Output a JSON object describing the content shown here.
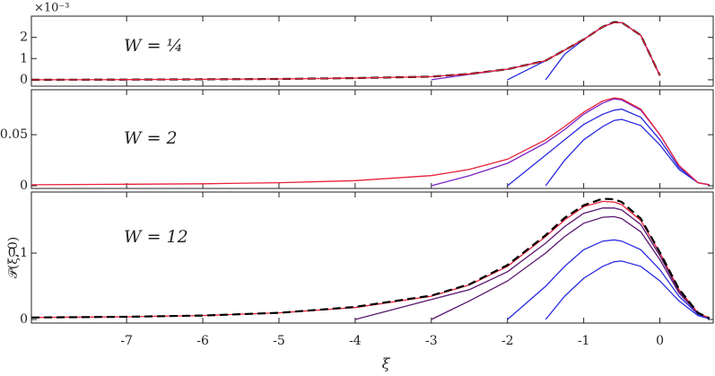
{
  "chart_data": [
    {
      "type": "line",
      "annotation": "W = ¼",
      "y_multiplier": "×10⁻³",
      "x": [
        -8.25,
        -7,
        -6,
        -5,
        -4,
        -3,
        -2.5,
        -2,
        -1.5,
        -1.25,
        -1,
        -0.75,
        -0.6,
        -0.5,
        -0.25,
        0,
        0.25,
        0.5,
        0.65
      ],
      "xlim": [
        -8.25,
        0.7
      ],
      "xticks": [
        -7,
        -6,
        -5,
        -4,
        -3,
        -2,
        -1,
        0
      ],
      "ylim": [
        -0.0003,
        0.003
      ],
      "yticks": [
        0,
        {
          "value": 0.001,
          "label": "1"
        },
        {
          "value": 0.002,
          "label": "2"
        }
      ],
      "series": [
        {
          "color": "#2a2ae0",
          "values": [
            null,
            null,
            null,
            null,
            null,
            null,
            null,
            null,
            0,
            0.0012,
            0.0019,
            0.0025,
            0.0027,
            0.0027,
            0.0021,
            0.0002,
            null,
            null,
            null
          ]
        },
        {
          "color": "#2a2ae0",
          "values": [
            null,
            null,
            null,
            null,
            null,
            null,
            null,
            0,
            0.0009,
            0.0014,
            0.0019,
            0.0025,
            0.0027,
            0.0027,
            0.0021,
            0.0002,
            null,
            null,
            null
          ]
        },
        {
          "color": "#7a22c8",
          "values": [
            null,
            null,
            null,
            null,
            null,
            0,
            0.00026,
            0.0005,
            0.0009,
            0.0014,
            0.0019,
            0.0025,
            0.0027,
            0.0027,
            0.0021,
            0.0002,
            null,
            null,
            null
          ]
        },
        {
          "color": "#000000",
          "dash": true,
          "values": [
            0,
            1e-05,
            2e-05,
            4e-05,
            8e-05,
            0.00015,
            0.00028,
            0.0005,
            0.0009,
            0.0014,
            0.0019,
            0.0025,
            0.00272,
            0.0027,
            0.0021,
            0.0002,
            null,
            null,
            null
          ]
        },
        {
          "color": "#e8213b",
          "values": [
            0,
            1e-05,
            2e-05,
            4e-05,
            8e-05,
            0.00015,
            0.00028,
            0.0005,
            0.0009,
            0.0014,
            0.0019,
            0.0025,
            0.0027,
            0.0027,
            0.0021,
            0.0002,
            null,
            null,
            null
          ]
        }
      ]
    },
    {
      "type": "line",
      "annotation": "W = 2",
      "x": [
        -8.25,
        -7,
        -6,
        -5,
        -4,
        -3,
        -2.5,
        -2,
        -1.5,
        -1.25,
        -1,
        -0.75,
        -0.6,
        -0.5,
        -0.25,
        0,
        0.25,
        0.5,
        0.65
      ],
      "xlim": [
        -8.25,
        0.7
      ],
      "xticks": [
        -7,
        -6,
        -5,
        -4,
        -3,
        -2,
        -1,
        0
      ],
      "ylim": [
        -0.0026,
        0.094
      ],
      "yticks": [
        0,
        0.05
      ],
      "series": [
        {
          "color": "#2a2ae0",
          "values": [
            null,
            null,
            null,
            null,
            null,
            null,
            null,
            null,
            0,
            0.025,
            0.045,
            0.058,
            0.064,
            0.065,
            0.059,
            0.04,
            0.016,
            0.003,
            0.001
          ]
        },
        {
          "color": "#2a2ae0",
          "values": [
            null,
            null,
            null,
            null,
            null,
            null,
            null,
            0,
            0.03,
            0.045,
            0.06,
            0.07,
            0.074,
            0.075,
            0.067,
            0.045,
            0.018,
            0.003,
            0.001
          ]
        },
        {
          "color": "#7a22c8",
          "values": [
            null,
            null,
            null,
            null,
            null,
            0,
            0.01,
            0.022,
            0.042,
            0.055,
            0.07,
            0.081,
            0.085,
            0.084,
            0.074,
            0.05,
            0.02,
            0.003,
            0.001
          ]
        },
        {
          "color": "#e8213b",
          "values": [
            0.001,
            0.0015,
            0.002,
            0.003,
            0.005,
            0.01,
            0.016,
            0.026,
            0.045,
            0.058,
            0.072,
            0.083,
            0.086,
            0.085,
            0.075,
            0.05,
            0.02,
            0.003,
            0.001
          ]
        }
      ]
    },
    {
      "type": "line",
      "annotation": "W = 12",
      "ylabel": "𝒫(ξ, 0)",
      "xlabel": "ξ",
      "show_xtick_labels": true,
      "x": [
        -8.25,
        -7,
        -6,
        -5,
        -4,
        -3,
        -2.5,
        -2,
        -1.5,
        -1.25,
        -1,
        -0.75,
        -0.6,
        -0.5,
        -0.25,
        0,
        0.25,
        0.5,
        0.65
      ],
      "xlim": [
        -8.25,
        0.7
      ],
      "xticks": [
        -7,
        -6,
        -5,
        -4,
        -3,
        -2,
        -1,
        0
      ],
      "ylim": [
        -0.0054,
        0.192
      ],
      "yticks": [
        0,
        0.1
      ],
      "series": [
        {
          "color": "#2a2ae0",
          "values": [
            null,
            null,
            null,
            null,
            null,
            null,
            null,
            null,
            0,
            0.035,
            0.062,
            0.08,
            0.087,
            0.088,
            0.08,
            0.058,
            0.028,
            0.006,
            0.001
          ]
        },
        {
          "color": "#2a2ae0",
          "values": [
            null,
            null,
            null,
            null,
            null,
            null,
            null,
            0,
            0.05,
            0.08,
            0.105,
            0.118,
            0.12,
            0.118,
            0.105,
            0.075,
            0.035,
            0.008,
            0.001
          ]
        },
        {
          "color": "#5a1670",
          "values": [
            null,
            null,
            null,
            null,
            null,
            0,
            0.028,
            0.058,
            0.1,
            0.125,
            0.145,
            0.154,
            0.155,
            0.152,
            0.132,
            0.09,
            0.04,
            0.009,
            0.002
          ]
        },
        {
          "color": "#5a1670",
          "values": [
            null,
            null,
            null,
            null,
            0,
            0.03,
            0.045,
            0.072,
            0.115,
            0.14,
            0.16,
            0.168,
            0.168,
            0.165,
            0.143,
            0.096,
            0.043,
            0.009,
            0.002
          ]
        },
        {
          "color": "#e8213b",
          "values": [
            0.003,
            0.004,
            0.006,
            0.01,
            0.018,
            0.035,
            0.052,
            0.08,
            0.125,
            0.15,
            0.17,
            0.178,
            0.177,
            0.173,
            0.149,
            0.1,
            0.045,
            0.01,
            0.002
          ]
        },
        {
          "color": "#000000",
          "dash": true,
          "values": [
            0.003,
            0.004,
            0.006,
            0.01,
            0.019,
            0.036,
            0.053,
            0.082,
            0.127,
            0.153,
            0.172,
            0.182,
            0.181,
            0.177,
            0.152,
            0.101,
            0.046,
            0.01,
            0.002
          ]
        }
      ]
    }
  ]
}
